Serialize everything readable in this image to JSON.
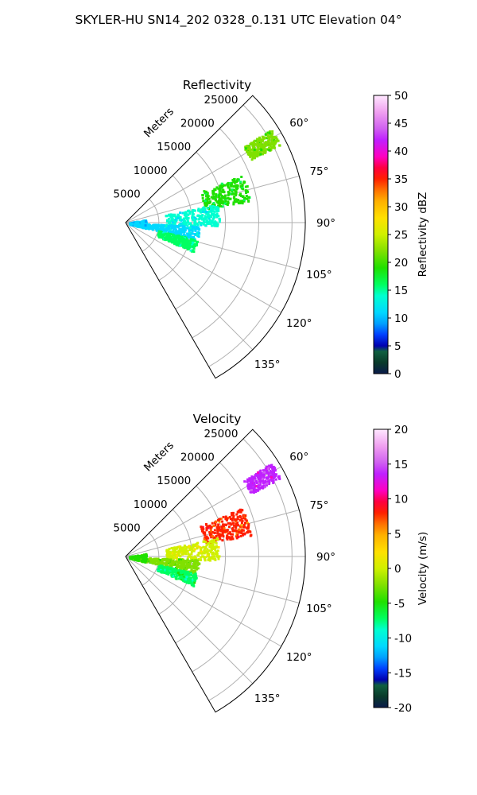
{
  "title": "SKYLER-HU  SN14_202  0328_0.131 UTC Elevation 04°",
  "chart_data": [
    {
      "type": "heatmap",
      "subtype": "polar-sector",
      "title": "Reflectivity",
      "radial_label": "Meters",
      "r_ticks": [
        5000,
        10000,
        15000,
        20000,
        25000
      ],
      "r_max": 27000,
      "theta_range_deg": [
        45,
        150
      ],
      "theta_ticks_deg": [
        60,
        75,
        90,
        105,
        120,
        135
      ],
      "colorbar": {
        "label": "Reflectivity dBZ",
        "min": 0,
        "max": 50,
        "ticks": [
          0,
          5,
          10,
          15,
          20,
          25,
          30,
          35,
          40,
          45,
          50
        ]
      },
      "echo_regions": [
        {
          "az_deg": [
            57,
            63
          ],
          "r_m": [
            21000,
            26000
          ],
          "value": 22
        },
        {
          "az_deg": [
            67,
            80
          ],
          "r_m": [
            12000,
            19000
          ],
          "value": 19
        },
        {
          "az_deg": [
            78,
            92
          ],
          "r_m": [
            6000,
            14000
          ],
          "value": 14
        },
        {
          "az_deg": [
            92,
            103
          ],
          "r_m": [
            3000,
            11000
          ],
          "value": 13
        },
        {
          "az_deg": [
            103,
            113
          ],
          "r_m": [
            5000,
            11000
          ],
          "value": 17
        },
        {
          "az_deg": [
            80,
            105
          ],
          "r_m": [
            500,
            3000
          ],
          "value": 11
        }
      ]
    },
    {
      "type": "heatmap",
      "subtype": "polar-sector",
      "title": "Velocity",
      "radial_label": "Meters",
      "r_ticks": [
        5000,
        10000,
        15000,
        20000,
        25000
      ],
      "r_max": 27000,
      "theta_range_deg": [
        45,
        150
      ],
      "theta_ticks_deg": [
        60,
        75,
        90,
        105,
        120,
        135
      ],
      "colorbar": {
        "label": "Velocity (m/s)",
        "min": -20,
        "max": 20,
        "ticks": [
          -20,
          -15,
          -10,
          -5,
          0,
          5,
          10,
          15,
          20
        ]
      },
      "echo_regions": [
        {
          "az_deg": [
            57,
            63
          ],
          "r_m": [
            21000,
            26000
          ],
          "value": 15
        },
        {
          "az_deg": [
            67,
            80
          ],
          "r_m": [
            12000,
            19000
          ],
          "value": 8
        },
        {
          "az_deg": [
            78,
            92
          ],
          "r_m": [
            6000,
            14000
          ],
          "value": 2
        },
        {
          "az_deg": [
            92,
            103
          ],
          "r_m": [
            3000,
            11000
          ],
          "value": -2
        },
        {
          "az_deg": [
            103,
            113
          ],
          "r_m": [
            5000,
            11000
          ],
          "value": -6
        },
        {
          "az_deg": [
            80,
            105
          ],
          "r_m": [
            500,
            3000
          ],
          "value": -3
        }
      ]
    }
  ]
}
